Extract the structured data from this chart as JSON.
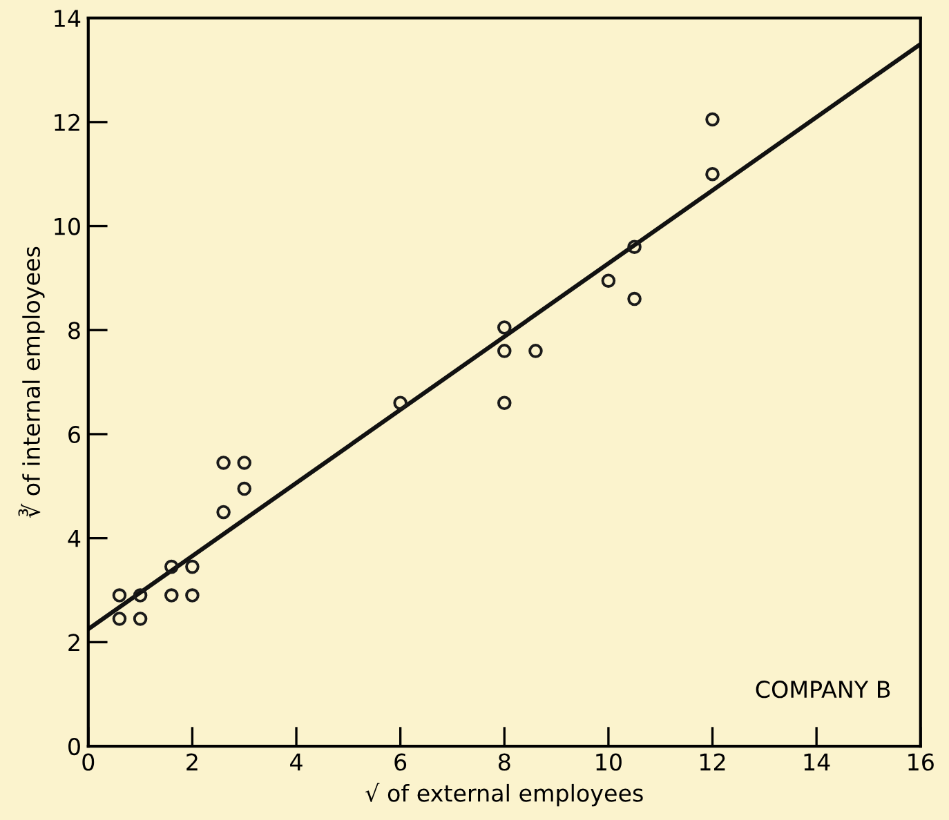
{
  "chart_data": {
    "type": "scatter",
    "xlabel": "√ of external employees",
    "ylabel": "∛ of internal employees",
    "annotations": [
      "COMPANY B"
    ],
    "series": [
      {
        "color": "#1a1a1a",
        "marker": "circle",
        "x": [
          0.6,
          0.6,
          1,
          1,
          1.6,
          1.6,
          2,
          2,
          2.6,
          2.6,
          3,
          3,
          6,
          8,
          8,
          8,
          8.6,
          10,
          10.5,
          10.5,
          12,
          12
        ],
        "values": [
          2.9,
          2.45,
          2.9,
          2.45,
          3.45,
          2.9,
          3.45,
          2.9,
          5.45,
          4.5,
          5.45,
          4.95,
          6.6,
          8.05,
          7.6,
          6.6,
          7.6,
          8.95,
          9.6,
          8.6,
          12.05,
          11.0
        ]
      },
      {
        "type": "line",
        "color": "#111111",
        "x": [
          0,
          16
        ],
        "values": [
          2.25,
          13.5
        ]
      }
    ],
    "xlim": [
      0,
      16
    ],
    "ylim": [
      0,
      14
    ],
    "xticks": [
      0,
      2,
      4,
      6,
      8,
      10,
      12,
      14,
      16
    ],
    "yticks": [
      0,
      2,
      4,
      6,
      8,
      10,
      12,
      14
    ],
    "grid": false
  }
}
